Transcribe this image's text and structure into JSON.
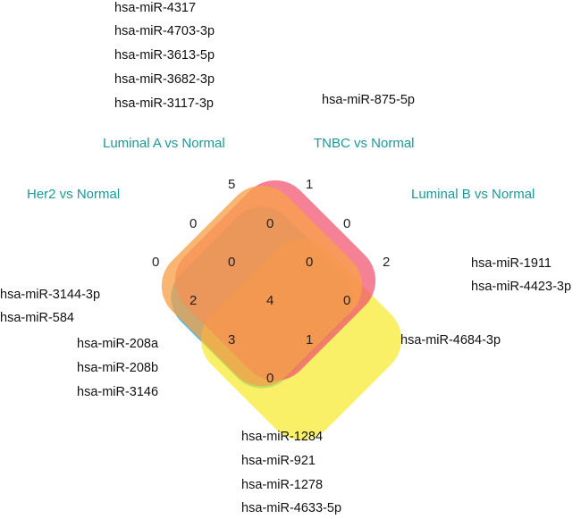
{
  "sets": [
    {
      "id": "her2",
      "label": "Her2 vs Normal",
      "color": "#1fb3e6"
    },
    {
      "id": "luma",
      "label": "Luminal A vs Normal",
      "color": "#f0506e"
    },
    {
      "id": "tnbc",
      "label": "TNBC vs Normal",
      "color": "#f7a24a"
    },
    {
      "id": "lumb",
      "label": "Luminal B vs Normal",
      "color": "#f7ea2e"
    }
  ],
  "regions": [
    {
      "id": "luma-only",
      "count": "5"
    },
    {
      "id": "tnbc-only",
      "count": "1"
    },
    {
      "id": "her2-luma",
      "count": "0"
    },
    {
      "id": "luma-tnbc",
      "count": "0"
    },
    {
      "id": "tnbc-lumb",
      "count": "0"
    },
    {
      "id": "her2-only",
      "count": "0"
    },
    {
      "id": "her2-luma-tnbc",
      "count": "0"
    },
    {
      "id": "luma-tnbc-lumb",
      "count": "0"
    },
    {
      "id": "lumb-only",
      "count": "2"
    },
    {
      "id": "her2-tnbc",
      "count": "2"
    },
    {
      "id": "all-four",
      "count": "4"
    },
    {
      "id": "luma-lumb",
      "count": "0"
    },
    {
      "id": "her2-tnbc-lumb",
      "count": "3"
    },
    {
      "id": "her2-luma-lumb",
      "count": "1"
    },
    {
      "id": "her2-lumb",
      "count": "0"
    }
  ],
  "mirna_lists": {
    "luma_only": [
      "hsa-miR-4317",
      "hsa-miR-4703-3p",
      "hsa-miR-3613-5p",
      "hsa-miR-3682-3p",
      "hsa-miR-3117-3p"
    ],
    "tnbc_only": [
      "hsa-miR-875-5p"
    ],
    "lumb_only": [
      "hsa-miR-1911",
      "hsa-miR-4423-3p"
    ],
    "her2_tnbc": [
      "hsa-miR-3144-3p",
      "hsa-miR-584"
    ],
    "her2_tnbc_lumb": [
      "hsa-miR-208a",
      "hsa-miR-208b",
      "hsa-miR-3146"
    ],
    "her2_luma_lumb": [
      "hsa-miR-4684-3p"
    ],
    "all_four": [
      "hsa-miR-1284",
      "hsa-miR-921",
      "hsa-miR-1278",
      "hsa-miR-4633-5p"
    ]
  }
}
